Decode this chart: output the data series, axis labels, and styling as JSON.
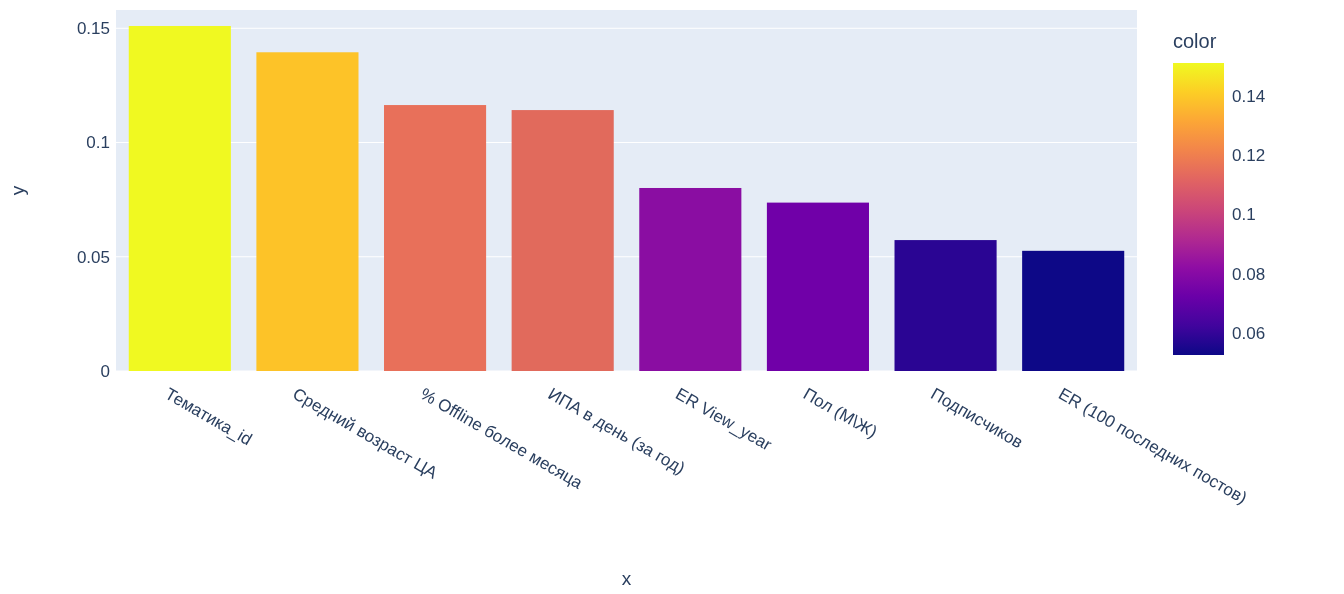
{
  "chart_data": {
    "type": "bar",
    "xlabel": "x",
    "ylabel": "y",
    "clabel": "color",
    "categories": [
      "Тематика_id",
      "Средний возраст ЦА",
      "% Offline более месяца",
      "ИПА в день (за год)",
      "ER View_year",
      "Пол (М\\Ж)",
      "Подписчиков",
      "ER (100 последних постов)"
    ],
    "values": [
      0.151,
      0.1395,
      0.1164,
      0.1142,
      0.0801,
      0.0737,
      0.0573,
      0.0526
    ],
    "colors": [
      "#f0f921",
      "#fdc328",
      "#e8705a",
      "#e16a5c",
      "#8a0da2",
      "#7000a8",
      "#2a0593",
      "#0d0887"
    ],
    "ylim": [
      0,
      0.158
    ],
    "yticks": [
      0,
      0.05,
      0.1,
      0.15
    ],
    "clim": [
      0.0526,
      0.151
    ],
    "cticks": [
      0.06,
      0.08,
      0.1,
      0.12,
      0.14
    ],
    "grid": "y"
  }
}
